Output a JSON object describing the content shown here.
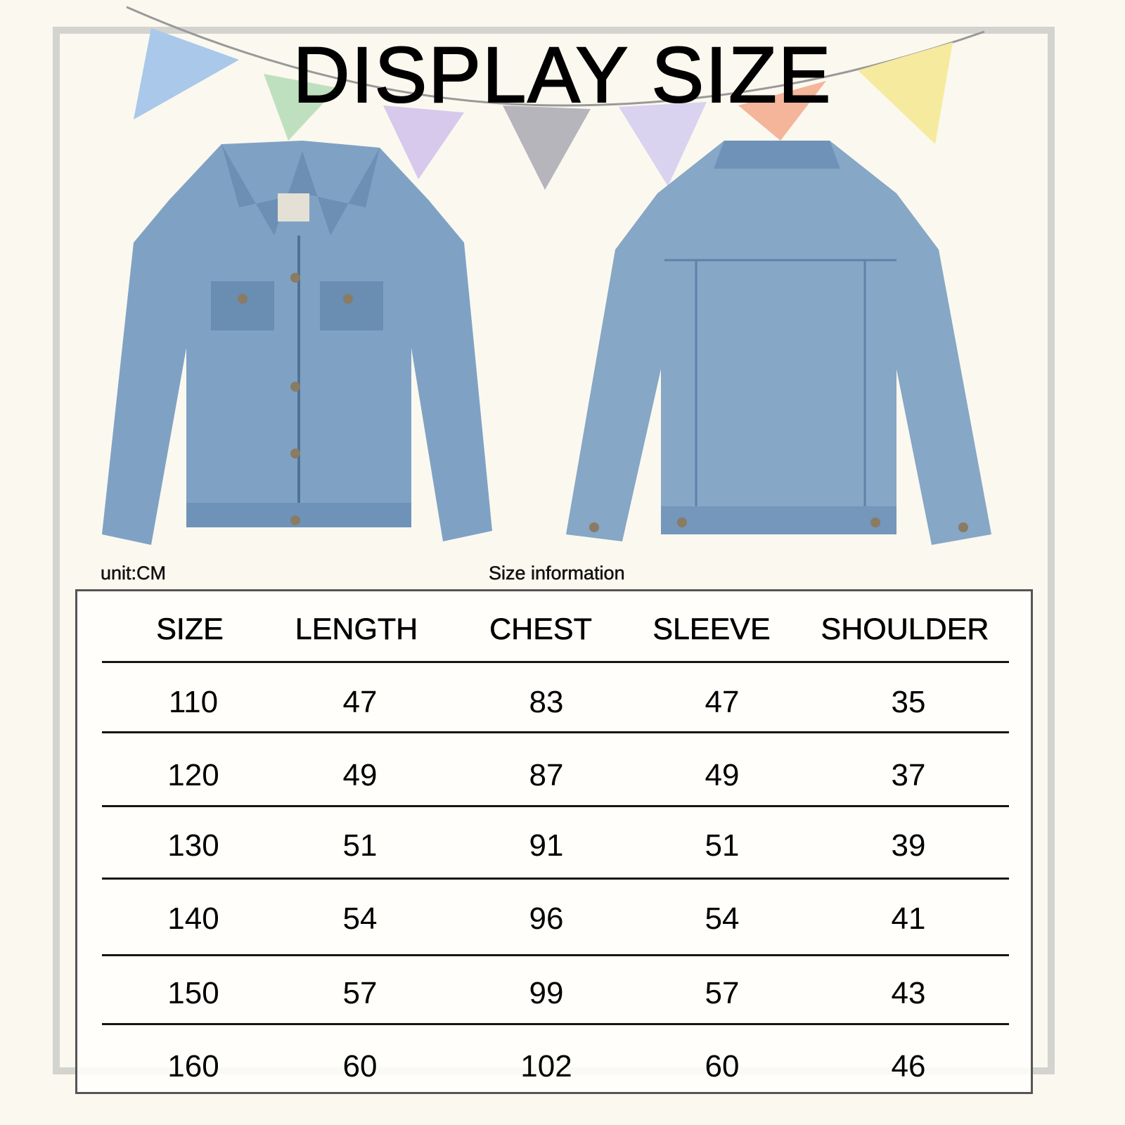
{
  "title": "DISPLAY SIZE",
  "unit_label": "unit:CM",
  "table_caption": "Size information",
  "table": {
    "headers": [
      "SIZE",
      "LENGTH",
      "CHEST",
      "SLEEVE",
      "SHOULDER"
    ],
    "rows": [
      [
        "110",
        "47",
        "83",
        "47",
        "35"
      ],
      [
        "120",
        "49",
        "87",
        "49",
        "37"
      ],
      [
        "130",
        "51",
        "91",
        "51",
        "39"
      ],
      [
        "140",
        "54",
        "96",
        "54",
        "41"
      ],
      [
        "150",
        "57",
        "99",
        "57",
        "43"
      ],
      [
        "160",
        "60",
        "102",
        "60",
        "46"
      ]
    ]
  },
  "colors": {
    "denim": "#7fa2c4",
    "denim_dark": "#4f7297",
    "frame": "#d3d3d0",
    "background": "#fbf8ef"
  }
}
